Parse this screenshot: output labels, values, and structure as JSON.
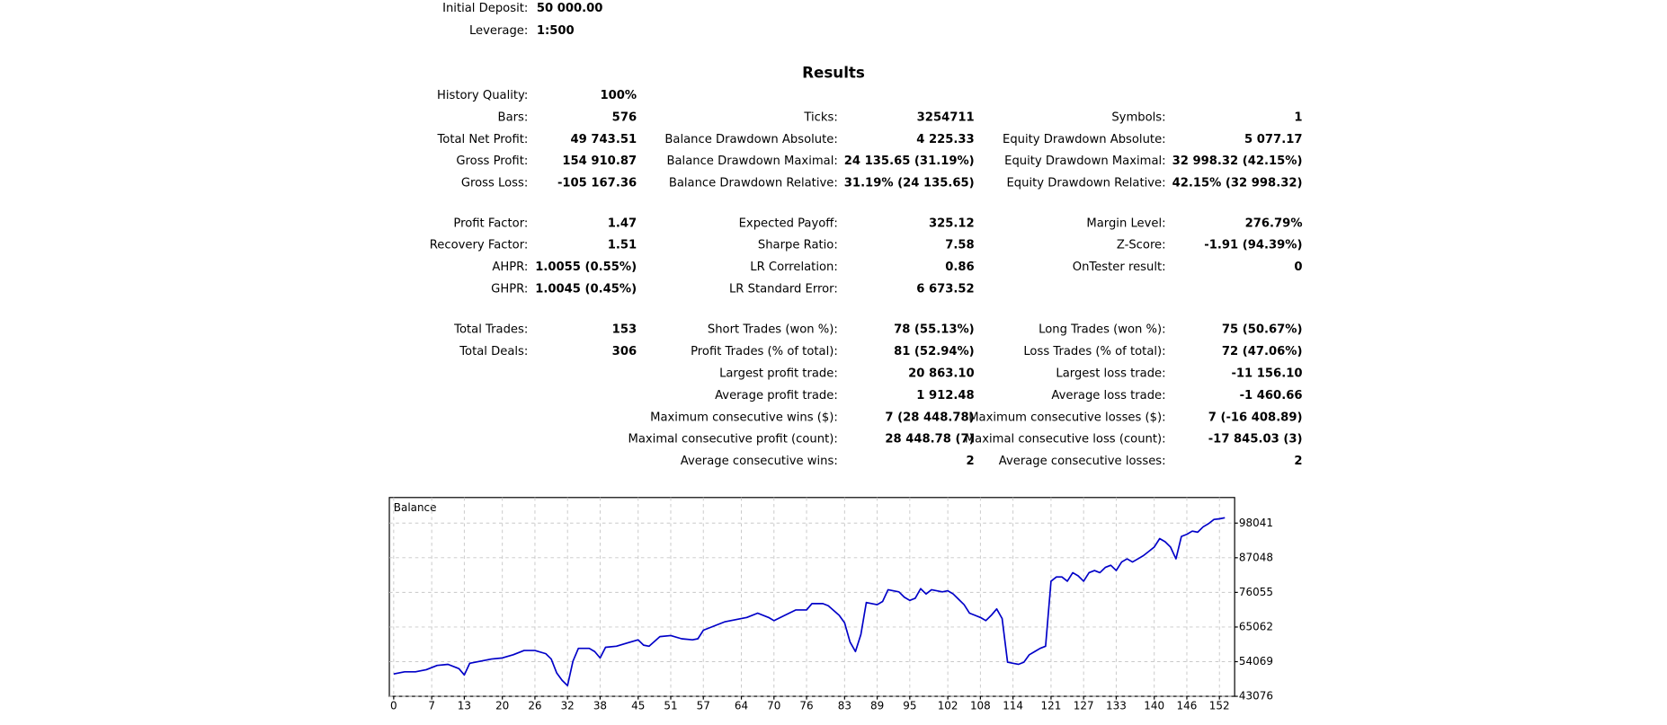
{
  "header": [
    {
      "label": "Initial Deposit:",
      "value": "50 000.00"
    },
    {
      "label": "Leverage:",
      "value": "1:500"
    }
  ],
  "results": {
    "title": "Results",
    "groups": [
      [
        [
          {
            "label": "History Quality:",
            "value": "100%"
          },
          null,
          null
        ],
        [
          {
            "label": "Bars:",
            "value": "576"
          },
          {
            "label": "Ticks:",
            "value": "3254711"
          },
          {
            "label": "Symbols:",
            "value": "1"
          }
        ],
        [
          {
            "label": "Total Net Profit:",
            "value": "49 743.51"
          },
          {
            "label": "Balance Drawdown Absolute:",
            "value": "4 225.33"
          },
          {
            "label": "Equity Drawdown Absolute:",
            "value": "5 077.17"
          }
        ],
        [
          {
            "label": "Gross Profit:",
            "value": "154 910.87"
          },
          {
            "label": "Balance Drawdown Maximal:",
            "value": "24 135.65 (31.19%)"
          },
          {
            "label": "Equity Drawdown Maximal:",
            "value": "32 998.32 (42.15%)"
          }
        ],
        [
          {
            "label": "Gross Loss:",
            "value": "-105 167.36"
          },
          {
            "label": "Balance Drawdown Relative:",
            "value": "31.19% (24 135.65)"
          },
          {
            "label": "Equity Drawdown Relative:",
            "value": "42.15% (32 998.32)"
          }
        ]
      ],
      [
        [
          {
            "label": "Profit Factor:",
            "value": "1.47"
          },
          {
            "label": "Expected Payoff:",
            "value": "325.12"
          },
          {
            "label": "Margin Level:",
            "value": "276.79%"
          }
        ],
        [
          {
            "label": "Recovery Factor:",
            "value": "1.51"
          },
          {
            "label": "Sharpe Ratio:",
            "value": "7.58"
          },
          {
            "label": "Z-Score:",
            "value": "-1.91 (94.39%)"
          }
        ],
        [
          {
            "label": "AHPR:",
            "value": "1.0055 (0.55%)"
          },
          {
            "label": "LR Correlation:",
            "value": "0.86"
          },
          {
            "label": "OnTester result:",
            "value": "0"
          }
        ],
        [
          {
            "label": "GHPR:",
            "value": "1.0045 (0.45%)"
          },
          {
            "label": "LR Standard Error:",
            "value": "6 673.52"
          },
          null
        ]
      ],
      [
        [
          {
            "label": "Total Trades:",
            "value": "153"
          },
          {
            "label": "Short Trades (won %):",
            "value": "78 (55.13%)"
          },
          {
            "label": "Long Trades (won %):",
            "value": "75 (50.67%)"
          }
        ],
        [
          {
            "label": "Total Deals:",
            "value": "306"
          },
          {
            "label": "Profit Trades (% of total):",
            "value": "81 (52.94%)"
          },
          {
            "label": "Loss Trades (% of total):",
            "value": "72 (47.06%)"
          }
        ],
        [
          null,
          {
            "label": "Largest profit trade:",
            "value": "20 863.10"
          },
          {
            "label": "Largest loss trade:",
            "value": "-11 156.10"
          }
        ],
        [
          null,
          {
            "label": "Average profit trade:",
            "value": "1 912.48"
          },
          {
            "label": "Average loss trade:",
            "value": "-1 460.66"
          }
        ],
        [
          null,
          {
            "label": "Maximum consecutive wins ($):",
            "value": "7 (28 448.78)"
          },
          {
            "label": "Maximum consecutive losses ($):",
            "value": "7 (-16 408.89)"
          }
        ],
        [
          null,
          {
            "label": "Maximal consecutive profit (count):",
            "value": "28 448.78 (7)"
          },
          {
            "label": "Maximal consecutive loss (count):",
            "value": "-17 845.03 (3)"
          }
        ],
        [
          null,
          {
            "label": "Average consecutive wins:",
            "value": "2"
          },
          {
            "label": "Average consecutive losses:",
            "value": "2"
          }
        ]
      ]
    ]
  },
  "chart_data": {
    "type": "line",
    "title": "Balance",
    "color": "#0000c8",
    "grid": true,
    "x": [
      0,
      2,
      4,
      6,
      8,
      10,
      12,
      13,
      14,
      16,
      18,
      20,
      22,
      24,
      26,
      28,
      29,
      30,
      31,
      32,
      33,
      34,
      36,
      37,
      38,
      39,
      41,
      43,
      45,
      46,
      47,
      49,
      51,
      53,
      55,
      56,
      57,
      59,
      61,
      63,
      65,
      67,
      69,
      70,
      72,
      74,
      76,
      77,
      79,
      80,
      82,
      83,
      84,
      85,
      86,
      87,
      89,
      90,
      91,
      93,
      94,
      95,
      96,
      97,
      98,
      99,
      101,
      102,
      103,
      104,
      105,
      106,
      107,
      108,
      109,
      110,
      111,
      112,
      113,
      114,
      115,
      116,
      117,
      118,
      119,
      120,
      121,
      122,
      123,
      124,
      125,
      126,
      127,
      128,
      129,
      130,
      131,
      132,
      133,
      134,
      135,
      136,
      137,
      138,
      139,
      140,
      141,
      142,
      143,
      144,
      145,
      146,
      147,
      148,
      149,
      150,
      151,
      152,
      153
    ],
    "values": [
      50180,
      50850,
      50850,
      51530,
      52880,
      53220,
      51870,
      49840,
      53560,
      54240,
      54910,
      55250,
      56270,
      57620,
      57620,
      56600,
      54910,
      50520,
      48150,
      46460,
      54240,
      58300,
      58300,
      57280,
      55250,
      58630,
      58970,
      59990,
      61000,
      59310,
      58970,
      62020,
      62360,
      61340,
      61000,
      61340,
      64040,
      65400,
      66750,
      67430,
      68100,
      69460,
      68100,
      67090,
      68780,
      70470,
      70470,
      72500,
      72500,
      71820,
      68780,
      66410,
      60330,
      57280,
      62690,
      72840,
      72160,
      73180,
      76900,
      76220,
      74530,
      73510,
      74190,
      77240,
      75550,
      76900,
      76220,
      76560,
      75550,
      73850,
      72160,
      69460,
      68780,
      68100,
      67090,
      68780,
      70810,
      67760,
      53900,
      53560,
      53220,
      53900,
      56270,
      57280,
      58300,
      58970,
      79600,
      80950,
      80950,
      79600,
      82310,
      81290,
      79600,
      82310,
      82990,
      82310,
      83990,
      84670,
      82990,
      85690,
      86700,
      85690,
      86700,
      87720,
      89070,
      90430,
      93130,
      92120,
      90430,
      86700,
      93810,
      94490,
      95500,
      95160,
      96850,
      97860,
      99210,
      99400,
      99740
    ],
    "xlim": [
      -0.8,
      154.8
    ],
    "ylim": [
      43076,
      106160
    ],
    "xticks": [
      0,
      7,
      13,
      20,
      26,
      32,
      38,
      45,
      51,
      57,
      64,
      70,
      76,
      83,
      89,
      95,
      102,
      108,
      114,
      121,
      127,
      133,
      140,
      146,
      152
    ],
    "yticks": [
      43076,
      54069,
      65062,
      76055,
      87048,
      98041
    ]
  }
}
